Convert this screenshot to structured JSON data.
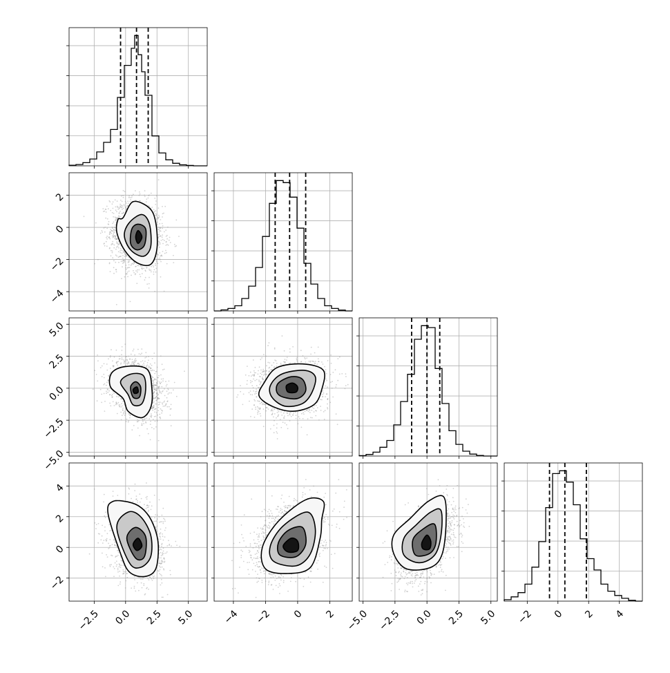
{
  "chart_data": {
    "type": "corner",
    "title": "",
    "grid": true,
    "colors": {
      "line": "#000000",
      "points": "#9a9a9a",
      "grid": "#b0b0b0",
      "background": "#ffffff"
    },
    "parameters": [
      {
        "ticks": [
          -2.5,
          0.0,
          2.5,
          5.0
        ],
        "tick_labels": [
          "−2.5",
          "0.0",
          "2.5",
          "5.0"
        ],
        "range": [
          -4.5,
          6.5
        ],
        "quantiles": [
          -0.4,
          0.87,
          1.8
        ],
        "hist": {
          "edges": [
            -4.5,
            -3.95,
            -3.4,
            -2.85,
            -2.3,
            -1.75,
            -1.2,
            -0.65,
            -0.1,
            0.45,
            0.72,
            1.0,
            1.28,
            1.55,
            2.1,
            2.65,
            3.2,
            3.75,
            4.3,
            4.85,
            5.4,
            6.5
          ],
          "counts": [
            0.3,
            0.6,
            1.5,
            3.2,
            6.5,
            11.0,
            17.0,
            32.0,
            47.0,
            55.0,
            61.0,
            52.0,
            44.0,
            33.0,
            14.0,
            6.0,
            2.8,
            1.2,
            0.5,
            0.2,
            0.0
          ]
        }
      },
      {
        "ticks": [
          -4,
          -2,
          0,
          2
        ],
        "tick_labels": [
          "−4",
          "−2",
          "0",
          "2"
        ],
        "range": [
          -5.2,
          3.4
        ],
        "quantiles": [
          -1.4,
          -0.5,
          0.5
        ],
        "hist": {
          "edges": [
            -5.2,
            -4.77,
            -4.34,
            -3.91,
            -3.48,
            -3.05,
            -2.62,
            -2.19,
            -1.76,
            -1.33,
            -0.9,
            -0.47,
            -0.04,
            0.39,
            0.82,
            1.25,
            1.68,
            2.11,
            2.54,
            2.97,
            3.4
          ],
          "counts": [
            0,
            0.5,
            1.2,
            2.5,
            6.0,
            12.0,
            21.0,
            36.0,
            52.0,
            63.0,
            62.0,
            55.0,
            40.0,
            23.0,
            13.0,
            6.0,
            2.5,
            1.2,
            0.4,
            0
          ]
        }
      },
      {
        "ticks": [
          -5.0,
          -2.5,
          0.0,
          2.5,
          5.0
        ],
        "tick_labels": [
          "−5.0",
          "−2.5",
          "0.0",
          "2.5",
          "5.0"
        ],
        "range": [
          -5.3,
          5.5
        ],
        "quantiles": [
          -1.2,
          0.0,
          1.0
        ],
        "hist": {
          "edges": [
            -5.3,
            -4.76,
            -4.22,
            -3.68,
            -3.14,
            -2.6,
            -2.06,
            -1.52,
            -0.98,
            -0.44,
            0.1,
            0.64,
            1.18,
            1.72,
            2.26,
            2.8,
            3.34,
            3.88,
            4.42,
            4.96,
            5.5
          ],
          "counts": [
            0.2,
            0.8,
            2.0,
            4.5,
            8.0,
            16.0,
            28.0,
            42.0,
            60.0,
            67.0,
            66.0,
            45.0,
            27.0,
            13.0,
            6.0,
            2.5,
            1.0,
            0.3,
            0,
            0
          ]
        }
      },
      {
        "ticks": [
          -2,
          0,
          2,
          4
        ],
        "tick_labels": [
          "−2",
          "0",
          "2",
          "4"
        ],
        "range": [
          -3.5,
          5.5
        ],
        "quantiles": [
          -0.55,
          0.45,
          1.85
        ],
        "hist": {
          "edges": [
            -3.5,
            -3.05,
            -2.6,
            -2.15,
            -1.7,
            -1.25,
            -0.8,
            -0.35,
            0.1,
            0.55,
            1.0,
            1.45,
            1.9,
            2.35,
            2.8,
            3.25,
            3.7,
            4.15,
            4.6,
            5.05,
            5.5
          ],
          "counts": [
            0.5,
            1.5,
            3.0,
            6.0,
            12.0,
            21.0,
            33.0,
            45.0,
            46.0,
            42.0,
            34.0,
            22.0,
            15.0,
            11.0,
            6.0,
            3.5,
            2.0,
            1.0,
            0.3,
            0
          ]
        }
      }
    ],
    "pairs": [
      {
        "x": 0,
        "y": 1,
        "mean": [
          0.9,
          -0.5
        ],
        "sd": [
          0.95,
          1.0
        ],
        "rho": -0.15,
        "contours": [
          [
            [
              -0.2,
              0.6
            ],
            [
              0.6,
              1.6
            ],
            [
              1.9,
              1.2
            ],
            [
              2.4,
              0.3
            ],
            [
              2.5,
              -1.3
            ],
            [
              2.0,
              -2.3
            ],
            [
              0.9,
              -2.2
            ],
            [
              -0.1,
              -1.4
            ],
            [
              -0.7,
              -0.3
            ],
            [
              -0.6,
              0.5
            ]
          ],
          [
            [
              0.3,
              0.3
            ],
            [
              1.3,
              0.8
            ],
            [
              1.9,
              0.2
            ],
            [
              2.0,
              -1.2
            ],
            [
              1.4,
              -1.8
            ],
            [
              0.4,
              -1.4
            ],
            [
              -0.1,
              -0.5
            ]
          ],
          [
            [
              0.5,
              -0.1
            ],
            [
              1.0,
              0.2
            ],
            [
              1.6,
              -0.1
            ],
            [
              1.5,
              -1.1
            ],
            [
              0.9,
              -1.4
            ],
            [
              0.4,
              -1.0
            ]
          ],
          [
            [
              0.8,
              -0.6
            ],
            [
              1.0,
              -0.2
            ],
            [
              1.3,
              -0.6
            ],
            [
              1.0,
              -1.0
            ]
          ]
        ]
      },
      {
        "x": 0,
        "y": 2,
        "mean": [
          0.9,
          0.0
        ],
        "sd": [
          0.95,
          1.0
        ],
        "rho": -0.25,
        "contours": [
          [
            [
              -1.1,
              1.2
            ],
            [
              0.0,
              1.7
            ],
            [
              1.7,
              1.5
            ],
            [
              2.1,
              -0.1
            ],
            [
              2.0,
              -1.5
            ],
            [
              1.3,
              -2.3
            ],
            [
              0.2,
              -1.8
            ],
            [
              -0.2,
              -0.8
            ],
            [
              -1.2,
              0.1
            ]
          ],
          [
            [
              -0.4,
              0.5
            ],
            [
              0.4,
              1.1
            ],
            [
              1.4,
              1.0
            ],
            [
              1.6,
              -0.1
            ],
            [
              1.3,
              -1.2
            ],
            [
              0.6,
              -1.3
            ],
            [
              0.2,
              -0.5
            ]
          ],
          [
            [
              0.4,
              0.1
            ],
            [
              0.8,
              0.5
            ],
            [
              1.2,
              0.1
            ],
            [
              1.1,
              -0.7
            ],
            [
              0.6,
              -0.7
            ]
          ],
          [
            [
              0.6,
              -0.1
            ],
            [
              0.9,
              0.1
            ],
            [
              1.0,
              -0.3
            ],
            [
              0.7,
              -0.4
            ]
          ]
        ]
      },
      {
        "x": 0,
        "y": 3,
        "mean": [
          0.9,
          0.45
        ],
        "sd": [
          0.95,
          1.1
        ],
        "rho": -0.2,
        "contours": [
          [
            [
              -1.4,
              2.2
            ],
            [
              -1.0,
              3.0
            ],
            [
              0.5,
              2.9
            ],
            [
              1.5,
              2.4
            ],
            [
              2.2,
              1.5
            ],
            [
              2.6,
              0.2
            ],
            [
              2.4,
              -1.4
            ],
            [
              1.5,
              -1.9
            ],
            [
              0.3,
              -1.6
            ],
            [
              -0.4,
              -0.4
            ]
          ],
          [
            [
              -0.7,
              1.3
            ],
            [
              0.2,
              2.3
            ],
            [
              1.2,
              2.0
            ],
            [
              2.0,
              0.8
            ],
            [
              2.0,
              -0.6
            ],
            [
              1.2,
              -1.3
            ],
            [
              0.3,
              -1.0
            ]
          ],
          [
            [
              0.1,
              0.6
            ],
            [
              0.8,
              1.3
            ],
            [
              1.6,
              0.7
            ],
            [
              1.5,
              -0.6
            ],
            [
              0.8,
              -0.7
            ]
          ],
          [
            [
              0.6,
              0.2
            ],
            [
              1.0,
              0.6
            ],
            [
              1.3,
              0.1
            ],
            [
              0.9,
              -0.2
            ]
          ]
        ]
      },
      {
        "x": 1,
        "y": 2,
        "mean": [
          -0.5,
          0.0
        ],
        "sd": [
          1.0,
          1.0
        ],
        "rho": 0.1,
        "contours": [
          [
            [
              -2.1,
              0.4
            ],
            [
              -1.3,
              1.6
            ],
            [
              0.3,
              1.9
            ],
            [
              1.6,
              1.4
            ],
            [
              1.5,
              -0.1
            ],
            [
              1.0,
              -1.3
            ],
            [
              -0.3,
              -1.8
            ],
            [
              -1.6,
              -1.4
            ],
            [
              -2.4,
              -0.6
            ]
          ],
          [
            [
              -1.7,
              0.2
            ],
            [
              -1.0,
              1.1
            ],
            [
              0.4,
              1.4
            ],
            [
              1.1,
              0.9
            ],
            [
              0.9,
              -0.3
            ],
            [
              0.3,
              -1.2
            ],
            [
              -0.8,
              -1.4
            ],
            [
              -1.6,
              -0.7
            ]
          ],
          [
            [
              -1.2,
              0.4
            ],
            [
              -0.4,
              0.9
            ],
            [
              0.3,
              0.7
            ],
            [
              0.5,
              -0.2
            ],
            [
              0.0,
              -0.8
            ],
            [
              -0.9,
              -0.7
            ],
            [
              -1.3,
              -0.3
            ]
          ],
          [
            [
              -0.7,
              0.2
            ],
            [
              -0.3,
              0.4
            ],
            [
              0.0,
              0.1
            ],
            [
              -0.1,
              -0.3
            ],
            [
              -0.6,
              -0.3
            ]
          ]
        ]
      },
      {
        "x": 1,
        "y": 3,
        "mean": [
          -0.5,
          0.45
        ],
        "sd": [
          1.0,
          1.1
        ],
        "rho": 0.35,
        "contours": [
          [
            [
              -2.2,
              0.0
            ],
            [
              -1.2,
              1.7
            ],
            [
              0.5,
              3.1
            ],
            [
              1.6,
              3.0
            ],
            [
              1.5,
              1.8
            ],
            [
              1.4,
              0.6
            ],
            [
              0.8,
              -1.3
            ],
            [
              -0.6,
              -1.7
            ],
            [
              -2.0,
              -1.4
            ]
          ],
          [
            [
              -1.7,
              0.1
            ],
            [
              -0.9,
              1.4
            ],
            [
              0.6,
              2.3
            ],
            [
              1.1,
              1.2
            ],
            [
              0.8,
              -0.4
            ],
            [
              -0.1,
              -1.2
            ],
            [
              -1.5,
              -0.9
            ]
          ],
          [
            [
              -1.2,
              0.3
            ],
            [
              -0.6,
              1.1
            ],
            [
              0.3,
              1.3
            ],
            [
              0.5,
              0.2
            ],
            [
              -0.1,
              -0.6
            ],
            [
              -1.1,
              -0.5
            ]
          ],
          [
            [
              -0.9,
              0.1
            ],
            [
              -0.4,
              0.6
            ],
            [
              0.0,
              0.4
            ],
            [
              0.0,
              -0.2
            ],
            [
              -0.6,
              -0.3
            ]
          ]
        ]
      },
      {
        "x": 2,
        "y": 3,
        "mean": [
          0.0,
          0.45
        ],
        "sd": [
          1.0,
          1.1
        ],
        "rho": 0.45,
        "contours": [
          [
            [
              -2.6,
              0.8
            ],
            [
              -1.3,
              1.9
            ],
            [
              0.1,
              3.0
            ],
            [
              1.3,
              3.3
            ],
            [
              1.5,
              1.7
            ],
            [
              1.2,
              -0.4
            ],
            [
              0.3,
              -1.3
            ],
            [
              -1.6,
              -1.4
            ],
            [
              -2.6,
              -0.4
            ]
          ],
          [
            [
              -1.8,
              0.6
            ],
            [
              -0.8,
              1.5
            ],
            [
              0.3,
              2.3
            ],
            [
              1.1,
              2.4
            ],
            [
              1.1,
              0.8
            ],
            [
              0.6,
              -0.5
            ],
            [
              -0.6,
              -1.0
            ],
            [
              -1.8,
              -0.5
            ]
          ],
          [
            [
              -1.1,
              0.5
            ],
            [
              -0.3,
              1.2
            ],
            [
              0.6,
              1.5
            ],
            [
              0.7,
              0.3
            ],
            [
              0.2,
              -0.4
            ],
            [
              -0.9,
              -0.5
            ]
          ],
          [
            [
              -0.4,
              0.3
            ],
            [
              0.0,
              0.8
            ],
            [
              0.3,
              0.4
            ],
            [
              0.2,
              -0.1
            ],
            [
              -0.3,
              -0.1
            ]
          ]
        ]
      }
    ]
  }
}
